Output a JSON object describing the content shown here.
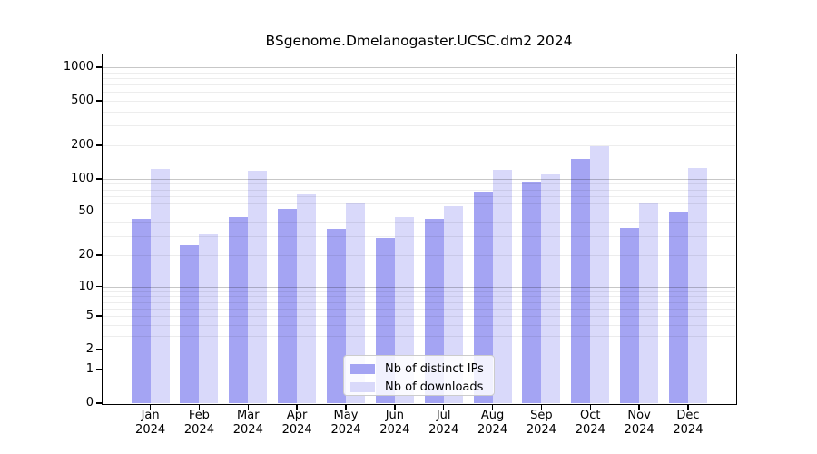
{
  "chart_data": {
    "type": "bar",
    "title": "BSgenome.Dmelanogaster.UCSC.dm2 2024",
    "yscale": "log1p",
    "ylim": [
      0,
      1000
    ],
    "grid": true,
    "legend_position": "lower center",
    "ytick_labels": [
      "0",
      "1",
      "2",
      "5",
      "10",
      "20",
      "50",
      "100",
      "200",
      "500",
      "1000"
    ],
    "categories": [
      {
        "month": "Jan",
        "year": "2024"
      },
      {
        "month": "Feb",
        "year": "2024"
      },
      {
        "month": "Mar",
        "year": "2024"
      },
      {
        "month": "Apr",
        "year": "2024"
      },
      {
        "month": "May",
        "year": "2024"
      },
      {
        "month": "Jun",
        "year": "2024"
      },
      {
        "month": "Jul",
        "year": "2024"
      },
      {
        "month": "Aug",
        "year": "2024"
      },
      {
        "month": "Sep",
        "year": "2024"
      },
      {
        "month": "Oct",
        "year": "2024"
      },
      {
        "month": "Nov",
        "year": "2024"
      },
      {
        "month": "Dec",
        "year": "2024"
      }
    ],
    "series": [
      {
        "name": "Nb of distinct IPs",
        "color": "#a4a4f3",
        "values": [
          43,
          25,
          45,
          53,
          35,
          29,
          43,
          77,
          95,
          150,
          36,
          50
        ]
      },
      {
        "name": "Nb of downloads",
        "color": "#d9d9fa",
        "values": [
          122,
          31,
          118,
          72,
          60,
          45,
          56,
          121,
          110,
          195,
          60,
          124
        ]
      }
    ]
  }
}
